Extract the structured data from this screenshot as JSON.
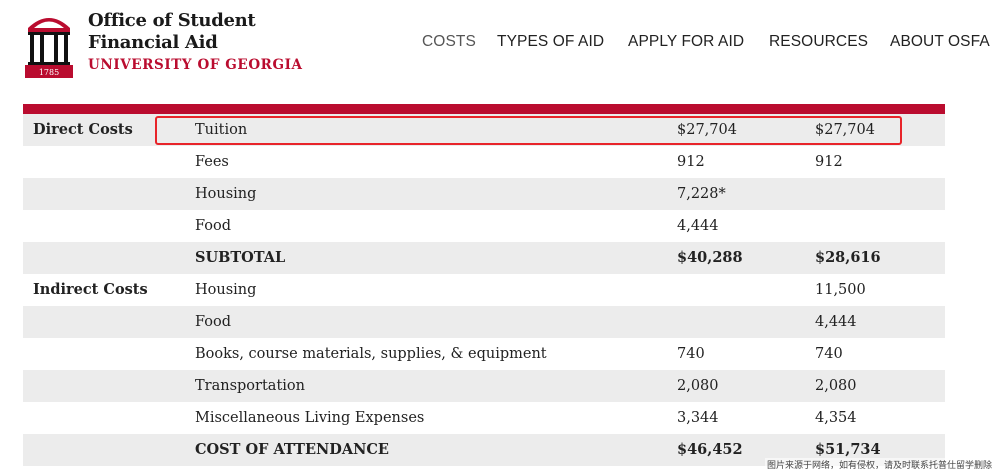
{
  "brand": {
    "line1": "Office of Student",
    "line2": "Financial Aid",
    "line3": "UNIVERSITY OF GEORGIA",
    "logo_year": "1785",
    "color": "#ba0c2f"
  },
  "nav": {
    "items": [
      "COSTS",
      "TYPES OF AID",
      "APPLY FOR AID",
      "RESOURCES",
      "ABOUT OSFA"
    ]
  },
  "table": {
    "rows": [
      {
        "category": "Direct Costs",
        "item": "Tuition",
        "col1": "$27,704",
        "col2": "$27,704"
      },
      {
        "category": "",
        "item": "Fees",
        "col1": "912",
        "col2": "912"
      },
      {
        "category": "",
        "item": "Housing",
        "col1": "7,228*",
        "col2": ""
      },
      {
        "category": "",
        "item": "Food",
        "col1": "4,444",
        "col2": ""
      },
      {
        "category": "",
        "item": "SUBTOTAL",
        "col1": "$40,288",
        "col2": "$28,616"
      },
      {
        "category": "Indirect Costs",
        "item": "Housing",
        "col1": "",
        "col2": "11,500"
      },
      {
        "category": "",
        "item": "Food",
        "col1": "",
        "col2": "4,444"
      },
      {
        "category": "",
        "item": "Books, course materials, supplies, & equipment",
        "col1": "740",
        "col2": "740"
      },
      {
        "category": "",
        "item": "Transportation",
        "col1": "2,080",
        "col2": "2,080"
      },
      {
        "category": "",
        "item": "Miscellaneous Living Expenses",
        "col1": "3,344",
        "col2": "4,354"
      },
      {
        "category": "",
        "item": "COST OF ATTENDANCE",
        "col1": "$46,452",
        "col2": "$51,734"
      }
    ]
  },
  "watermark": "图片来源于网络，如有侵权，请及时联系托普仕留学删除",
  "colors": {
    "accent": "#ba0c2f",
    "highlight": "#e8242a",
    "stripe": "#ececec"
  }
}
